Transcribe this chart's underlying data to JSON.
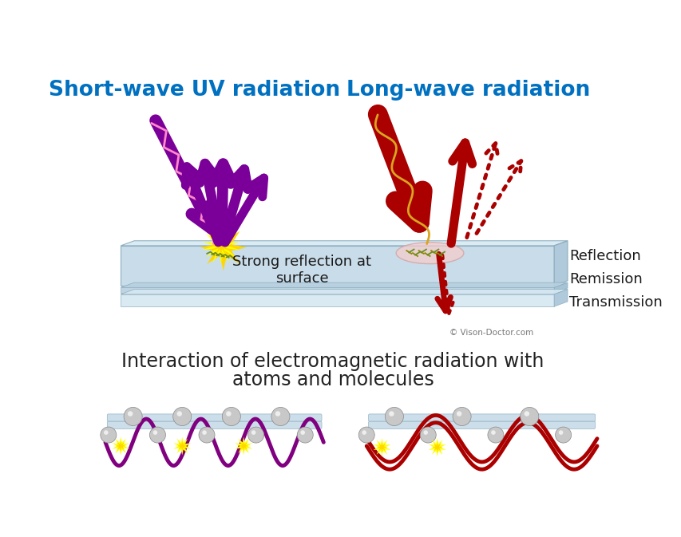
{
  "title_left": "Short-wave UV radiation",
  "title_right": "Long-wave radiation",
  "title_color": "#0070C0",
  "title_fontsize": 19,
  "bg_color": "#ffffff",
  "subtitle_line1": "Interaction of electromagnetic radiation with",
  "subtitle_line2": "atoms and molecules",
  "subtitle_fontsize": 17,
  "subtitle_color": "#222222",
  "copyright": "© Vison-Doctor.com",
  "text_reflection_left": "Strong reflection at\nsurface",
  "text_reflection_right": "Reflection\nRemission\nTransmission",
  "uv_color": "#7B0099",
  "uv_wave_color": "#FF88CC",
  "ir_color": "#AA0000",
  "ir_wave_color": "#DAA520",
  "yellow_bright": "#FFFF00",
  "yellow_dark": "#FFD700",
  "slab_top_color": "#C5D9E8",
  "slab_top_color2": "#D8E9F3",
  "slab_mid_color": "#B8D0E0",
  "slab_bot_color": "#E0ECF5",
  "slab_edge_color": "#88AABB",
  "wave_uv_color": "#800080",
  "wave_ir_color": "#AA0000",
  "sphere_color": "#C0C0C0",
  "molecule_color": "#6B8E23",
  "molecule_ir_color": "#8B8B00",
  "pink_ellipse": "#F5CCCC",
  "text_dark": "#1A1A1A"
}
